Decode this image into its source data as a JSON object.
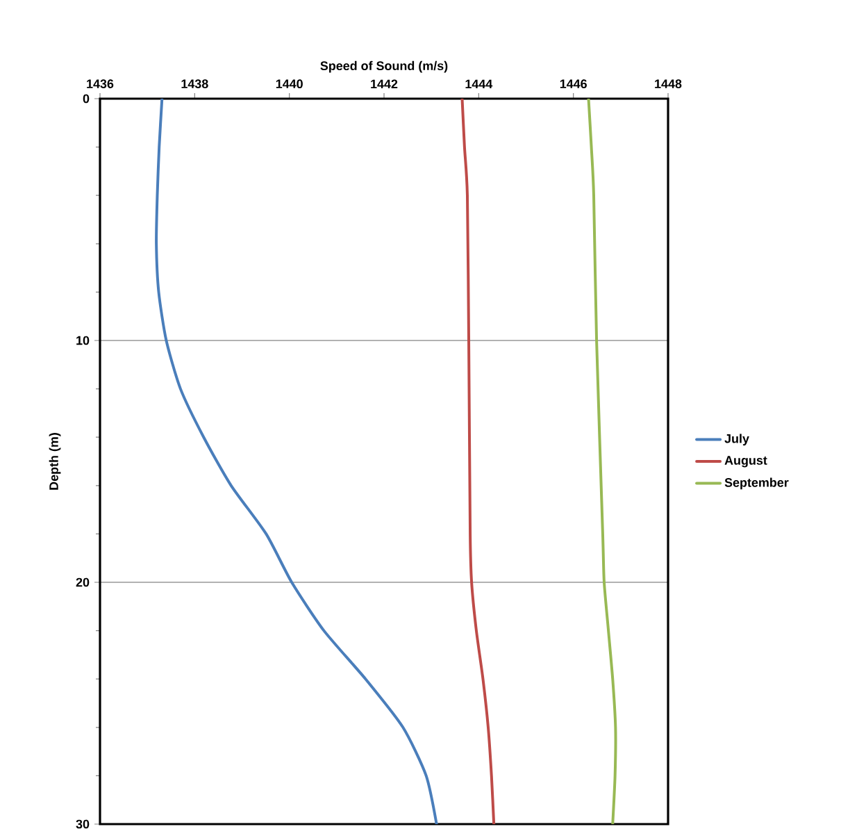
{
  "chart_data": {
    "type": "line",
    "xlabel": "Speed of Sound (m/s)",
    "ylabel": "Depth (m)",
    "xlim": [
      1436,
      1448
    ],
    "xticks": [
      1436,
      1438,
      1440,
      1442,
      1444,
      1446,
      1448
    ],
    "ylim": [
      30,
      0
    ],
    "yticks": [
      0,
      {
        "value": 2,
        "label": null
      },
      {
        "value": 4,
        "label": null
      },
      {
        "value": 6,
        "label": null
      },
      {
        "value": 8,
        "label": null
      },
      10,
      {
        "value": 12,
        "label": null
      },
      {
        "value": 14,
        "label": null
      },
      {
        "value": 16,
        "label": null
      },
      {
        "value": 18,
        "label": null
      },
      20,
      {
        "value": 22,
        "label": null
      },
      {
        "value": 24,
        "label": null
      },
      {
        "value": 26,
        "label": null
      },
      {
        "value": 28,
        "label": null
      },
      30
    ],
    "grid": "y",
    "legend": "right",
    "marker": "none",
    "line_style": "solid",
    "series": [
      {
        "name": "July",
        "color": "#4a7ebb",
        "x": [
          1437.31,
          1437.25,
          1437.21,
          1437.19,
          1437.24,
          1437.4,
          1437.7,
          1438.19,
          1438.77,
          1439.51,
          1440.05,
          1440.73,
          1441.61,
          1442.4,
          1442.89,
          1443.11
        ],
        "values": [
          0,
          2,
          4,
          6,
          8,
          10,
          12,
          14,
          16,
          18,
          20,
          22,
          24,
          26,
          28,
          30
        ]
      },
      {
        "name": "August",
        "color": "#be4b48",
        "x": [
          1443.65,
          1443.7,
          1443.76,
          1443.79,
          1443.82,
          1443.85,
          1443.95,
          1444.09,
          1444.2,
          1444.27,
          1444.32
        ],
        "values": [
          0,
          2,
          4,
          10,
          18,
          20,
          22,
          24,
          26,
          28,
          30
        ]
      },
      {
        "name": "September",
        "color": "#98b954",
        "x": [
          1446.32,
          1446.38,
          1446.43,
          1446.49,
          1446.62,
          1446.65,
          1446.74,
          1446.83,
          1446.89,
          1446.88,
          1446.83
        ],
        "values": [
          0,
          2,
          4,
          10,
          18,
          20,
          22,
          24,
          26,
          28,
          30
        ]
      }
    ]
  }
}
